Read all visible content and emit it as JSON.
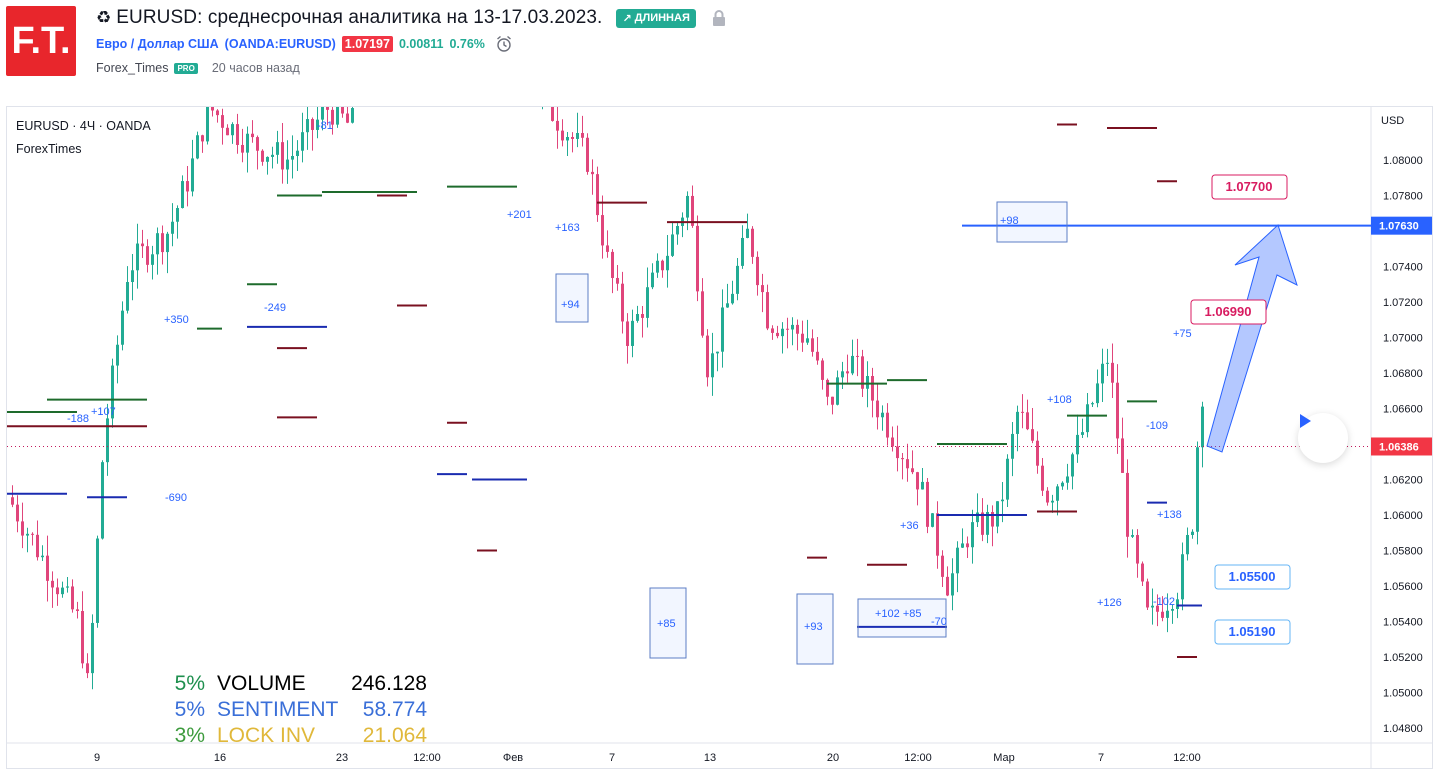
{
  "header": {
    "title": "EURUSD: среднесрочная аналитика на 13-17.03.2023.",
    "title_icon": "recycle-icon",
    "badge_label": "ДЛИННАЯ",
    "symbol_name": "Евро / Доллар США",
    "symbol_ticker": "(OANDA:EURUSD)",
    "price": "1.07197",
    "change_abs": "0.00811",
    "change_pct": "0.76%",
    "author": "Forex_Times",
    "author_badge": "PRO",
    "posted_ago": "20 часов назад"
  },
  "chart": {
    "symbol_label": "EURUSD · 4Ч · OANDA",
    "indicator_label": "ForexTimes",
    "currency": "USD",
    "y_ticks": [
      "1.08000",
      "1.07800",
      "1.07400",
      "1.07200",
      "1.07000",
      "1.06800",
      "1.06600",
      "1.06200",
      "1.06000",
      "1.05800",
      "1.05600",
      "1.05400",
      "1.05200",
      "1.05000",
      "1.04800"
    ],
    "x_ticks": [
      "9",
      "16",
      "23",
      "12:00",
      "Фев",
      "7",
      "13",
      "20",
      "12:00",
      "Мар",
      "7",
      "12:00"
    ],
    "price_tags": {
      "blue_line": "1.07630",
      "current": "1.06386"
    },
    "callouts": [
      "1.07700",
      "1.06990",
      "1.05500",
      "1.05190"
    ],
    "markers": [
      "+201",
      "+163",
      "-81",
      "+350",
      "-249",
      "+94",
      "+98",
      "-188",
      "+107",
      "-690",
      "+108",
      "-109",
      "+138",
      "+85",
      "+93",
      "+102 +85",
      "-70",
      "+126",
      "-102",
      "+75",
      "+36"
    ],
    "colors": {
      "up": "#22ab94",
      "down": "#e0457b",
      "blue_level": "#2962ff",
      "current_tag": "#f23645"
    }
  },
  "stats": [
    {
      "pct": "5%",
      "label": "VOLUME",
      "value": "246.128",
      "pct_color": "#1e8f4e",
      "label_color": "#000000"
    },
    {
      "pct": "5%",
      "label": "SENTIMENT",
      "value": "58.774",
      "pct_color": "#3a6fd8",
      "label_color": "#3a6fd8"
    },
    {
      "pct": "3%",
      "label": "LOCK INV",
      "value": "21.064",
      "pct_color": "#3d9b3d",
      "label_color": "#e0b83a"
    }
  ]
}
